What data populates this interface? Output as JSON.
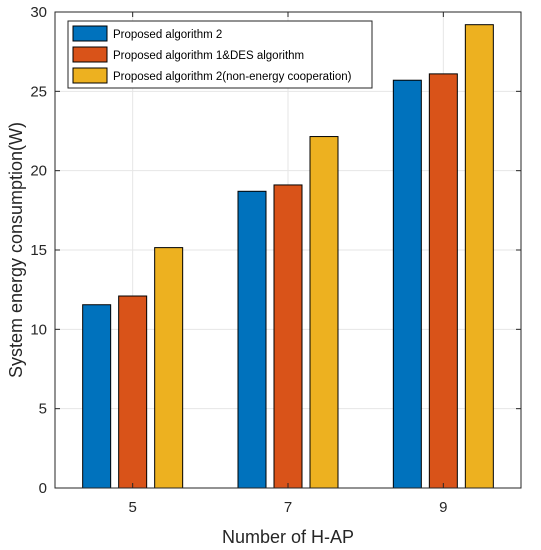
{
  "chart_data": {
    "type": "bar",
    "categories": [
      "5",
      "7",
      "9"
    ],
    "series": [
      {
        "name": "Proposed algorithm 2",
        "color": "#0072bd",
        "values": [
          11.55,
          18.7,
          25.7
        ]
      },
      {
        "name": "Proposed algorithm 1&DES algorithm",
        "color": "#d95319",
        "values": [
          12.1,
          19.1,
          26.1
        ]
      },
      {
        "name": "Proposed algorithm 2(non-energy cooperation)",
        "color": "#edb120",
        "values": [
          15.15,
          22.15,
          29.2
        ]
      }
    ],
    "xlabel": "Number of H-AP",
    "ylabel": "System energy consumption(W)",
    "ylim": [
      0,
      30
    ],
    "yticks": [
      "0",
      "5",
      "10",
      "15",
      "20",
      "25",
      "30"
    ],
    "grid": true,
    "legend_position": "top-left"
  }
}
